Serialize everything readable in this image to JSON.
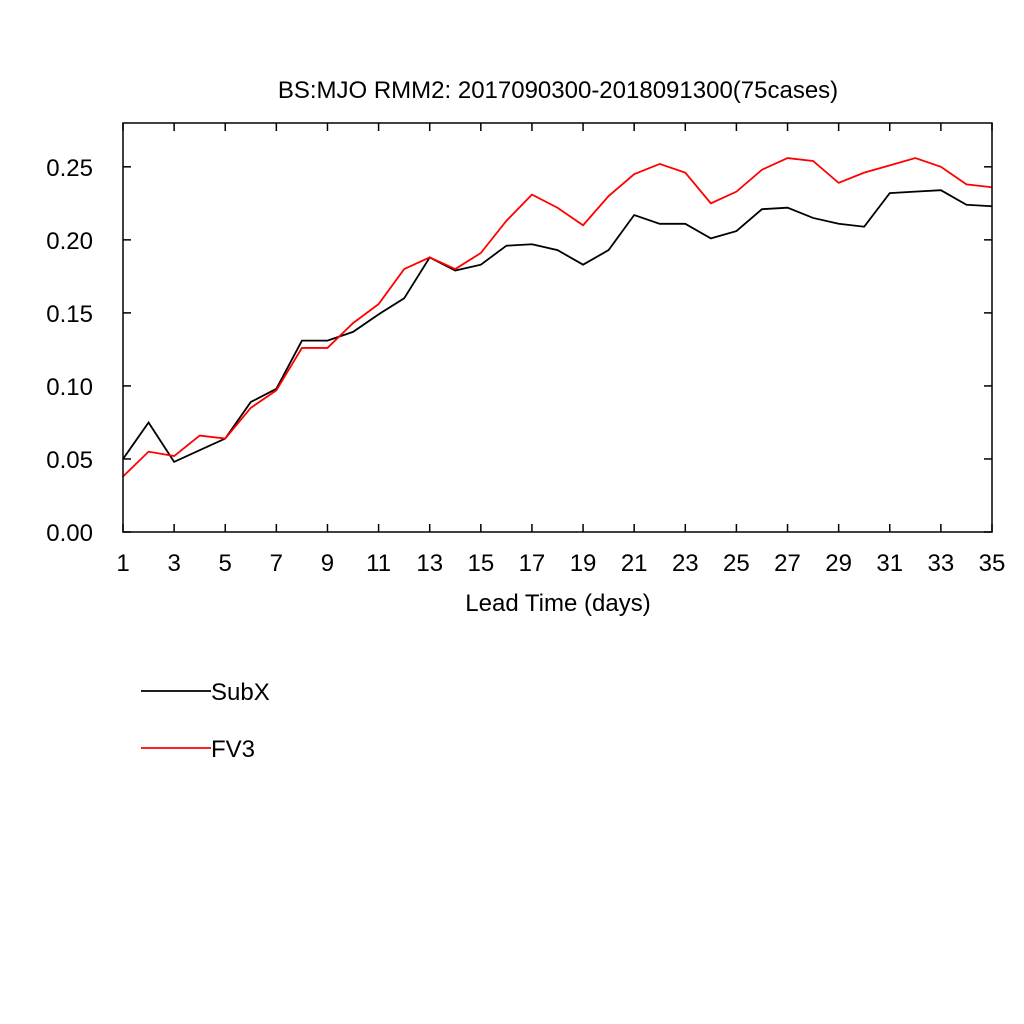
{
  "chart_data": {
    "type": "line",
    "title": "BS:MJO RMM2: 2017090300-2018091300(75cases)",
    "xlabel": "Lead Time (days)",
    "ylabel": "",
    "xlim": [
      1,
      35
    ],
    "ylim": [
      0,
      0.28
    ],
    "xticks": [
      1,
      3,
      5,
      7,
      9,
      11,
      13,
      15,
      17,
      19,
      21,
      23,
      25,
      27,
      29,
      31,
      33,
      35
    ],
    "xtick_labels": [
      "1",
      "3",
      "5",
      "7",
      "9",
      "11",
      "13",
      "15",
      "17",
      "19",
      "21",
      "23",
      "25",
      "27",
      "29",
      "31",
      "33",
      "35"
    ],
    "yticks": [
      0,
      0.05,
      0.1,
      0.15,
      0.2,
      0.25
    ],
    "ytick_labels": [
      "0.00",
      "0.05",
      "0.10",
      "0.15",
      "0.20",
      "0.25"
    ],
    "grid": false,
    "legend_placement": "below-left",
    "x": [
      1,
      2,
      3,
      4,
      5,
      6,
      7,
      8,
      9,
      10,
      11,
      12,
      13,
      14,
      15,
      16,
      17,
      18,
      19,
      20,
      21,
      22,
      23,
      24,
      25,
      26,
      27,
      28,
      29,
      30,
      31,
      32,
      33,
      34,
      35
    ],
    "series": [
      {
        "name": "SubX",
        "color": "#000000",
        "values": [
          0.05,
          0.075,
          0.048,
          0.056,
          0.064,
          0.089,
          0.098,
          0.131,
          0.131,
          0.137,
          0.149,
          0.16,
          0.188,
          0.179,
          0.183,
          0.196,
          0.197,
          0.193,
          0.183,
          0.193,
          0.217,
          0.211,
          0.211,
          0.201,
          0.206,
          0.221,
          0.222,
          0.215,
          0.211,
          0.209,
          0.232,
          0.233,
          0.234,
          0.224,
          0.223
        ]
      },
      {
        "name": "FV3",
        "color": "#ff0000",
        "values": [
          0.038,
          0.055,
          0.052,
          0.066,
          0.064,
          0.085,
          0.097,
          0.126,
          0.126,
          0.143,
          0.156,
          0.18,
          0.188,
          0.18,
          0.191,
          0.213,
          0.231,
          0.222,
          0.21,
          0.23,
          0.245,
          0.252,
          0.246,
          0.225,
          0.233,
          0.248,
          0.256,
          0.254,
          0.239,
          0.246,
          0.251,
          0.256,
          0.25,
          0.238,
          0.236
        ]
      }
    ]
  }
}
